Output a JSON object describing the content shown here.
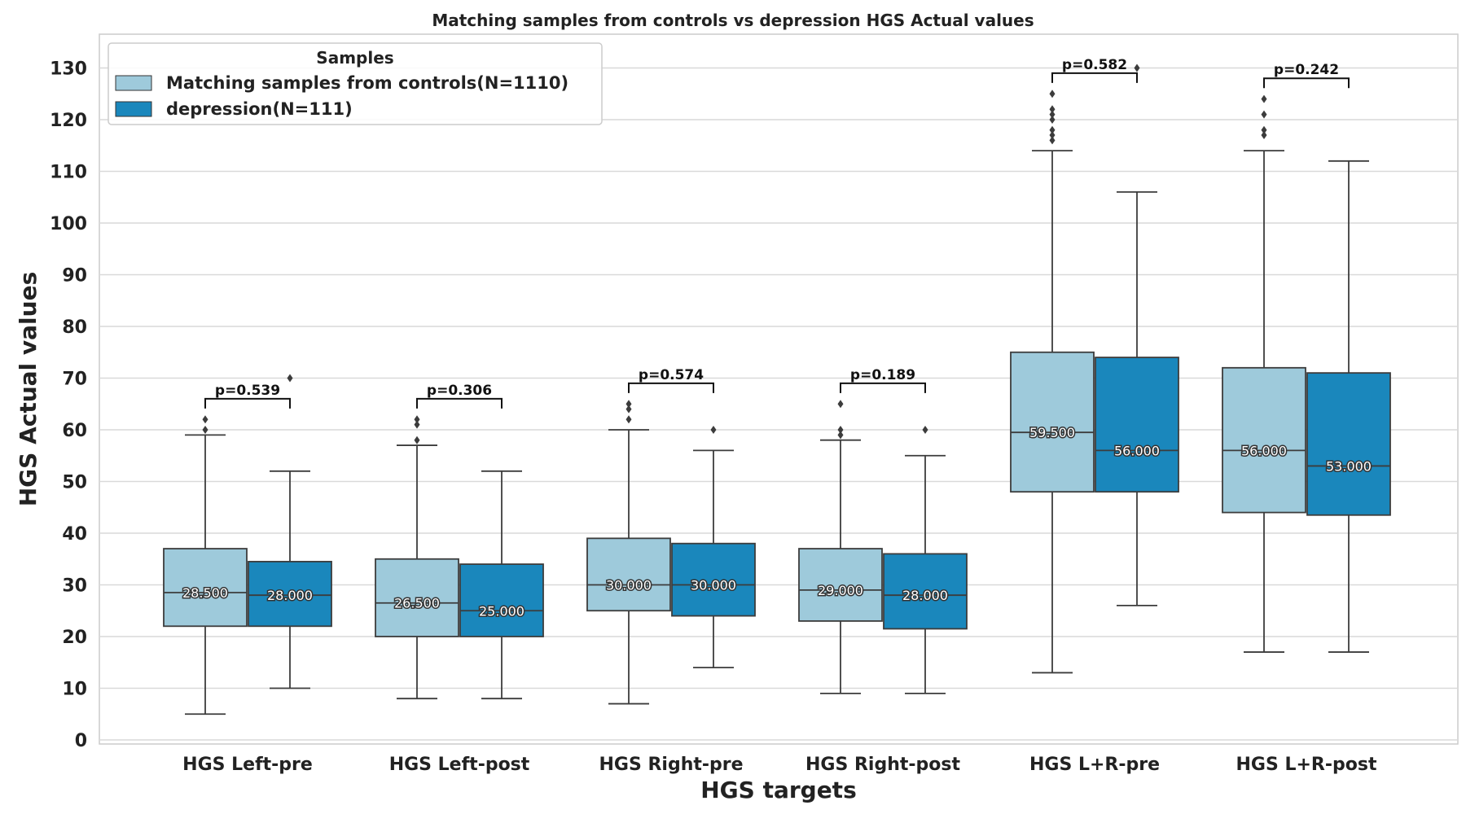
{
  "chart_data": {
    "type": "box",
    "title": "Matching samples from controls vs depression HGS Actual values",
    "xlabel": "HGS targets",
    "ylabel": "HGS Actual values",
    "ylim": [
      -1,
      136
    ],
    "yticks": [
      0,
      10,
      20,
      30,
      40,
      50,
      60,
      70,
      80,
      90,
      100,
      110,
      120,
      130
    ],
    "grid": true,
    "legend": {
      "title": "Samples",
      "position": "top-left",
      "entries": [
        {
          "label": "Matching samples from controls(N=1110)",
          "color": "#9ecadb"
        },
        {
          "label": "depression(N=111)",
          "color": "#1a87bc"
        }
      ]
    },
    "categories": [
      "HGS Left-pre",
      "HGS Left-post",
      "HGS Right-pre",
      "HGS Right-post",
      "HGS L+R-pre",
      "HGS L+R-post"
    ],
    "series": [
      {
        "name": "Matching samples from controls(N=1110)",
        "color": "#9ecadb",
        "boxes": [
          {
            "whislo": 5,
            "q1": 22,
            "med": 28.5,
            "q3": 37,
            "whishi": 59,
            "fliers": [
              60,
              62
            ],
            "label": "28.500"
          },
          {
            "whislo": 8,
            "q1": 20,
            "med": 26.5,
            "q3": 35,
            "whishi": 57,
            "fliers": [
              58,
              61,
              62
            ],
            "label": "26.500"
          },
          {
            "whislo": 7,
            "q1": 25,
            "med": 30,
            "q3": 39,
            "whishi": 60,
            "fliers": [
              62,
              64,
              65
            ],
            "label": "30.000"
          },
          {
            "whislo": 9,
            "q1": 23,
            "med": 29,
            "q3": 37,
            "whishi": 58,
            "fliers": [
              59,
              60,
              65
            ],
            "label": "29.000"
          },
          {
            "whislo": 13,
            "q1": 48,
            "med": 59.5,
            "q3": 75,
            "whishi": 114,
            "fliers": [
              116,
              117,
              118,
              120,
              121,
              122,
              125
            ],
            "label": "59.500"
          },
          {
            "whislo": 17,
            "q1": 44,
            "med": 56,
            "q3": 72,
            "whishi": 114,
            "fliers": [
              117,
              118,
              121,
              124
            ],
            "label": "56.000"
          }
        ]
      },
      {
        "name": "depression(N=111)",
        "color": "#1a87bc",
        "boxes": [
          {
            "whislo": 10,
            "q1": 22,
            "med": 28,
            "q3": 34.5,
            "whishi": 52,
            "fliers": [
              70
            ],
            "label": "28.000"
          },
          {
            "whislo": 8,
            "q1": 20,
            "med": 25,
            "q3": 34,
            "whishi": 52,
            "fliers": [],
            "label": "25.000"
          },
          {
            "whislo": 14,
            "q1": 24,
            "med": 30,
            "q3": 38,
            "whishi": 56,
            "fliers": [
              60
            ],
            "label": "30.000"
          },
          {
            "whislo": 9,
            "q1": 21.5,
            "med": 28,
            "q3": 36,
            "whishi": 55,
            "fliers": [
              60
            ],
            "label": "28.000"
          },
          {
            "whislo": 26,
            "q1": 48,
            "med": 56,
            "q3": 74,
            "whishi": 106,
            "fliers": [
              130
            ],
            "label": "56.000"
          },
          {
            "whislo": 17,
            "q1": 43.5,
            "med": 53,
            "q3": 71,
            "whishi": 112,
            "fliers": [],
            "label": "53.000"
          }
        ]
      }
    ],
    "annotations": [
      {
        "category": "HGS Left-pre",
        "text": "p=0.539",
        "bracket_y": 66
      },
      {
        "category": "HGS Left-post",
        "text": "p=0.306",
        "bracket_y": 66
      },
      {
        "category": "HGS Right-pre",
        "text": "p=0.574",
        "bracket_y": 69
      },
      {
        "category": "HGS Right-post",
        "text": "p=0.189",
        "bracket_y": 69
      },
      {
        "category": "HGS L+R-pre",
        "text": "p=0.582",
        "bracket_y": 129
      },
      {
        "category": "HGS L+R-post",
        "text": "p=0.242",
        "bracket_y": 128
      }
    ]
  }
}
